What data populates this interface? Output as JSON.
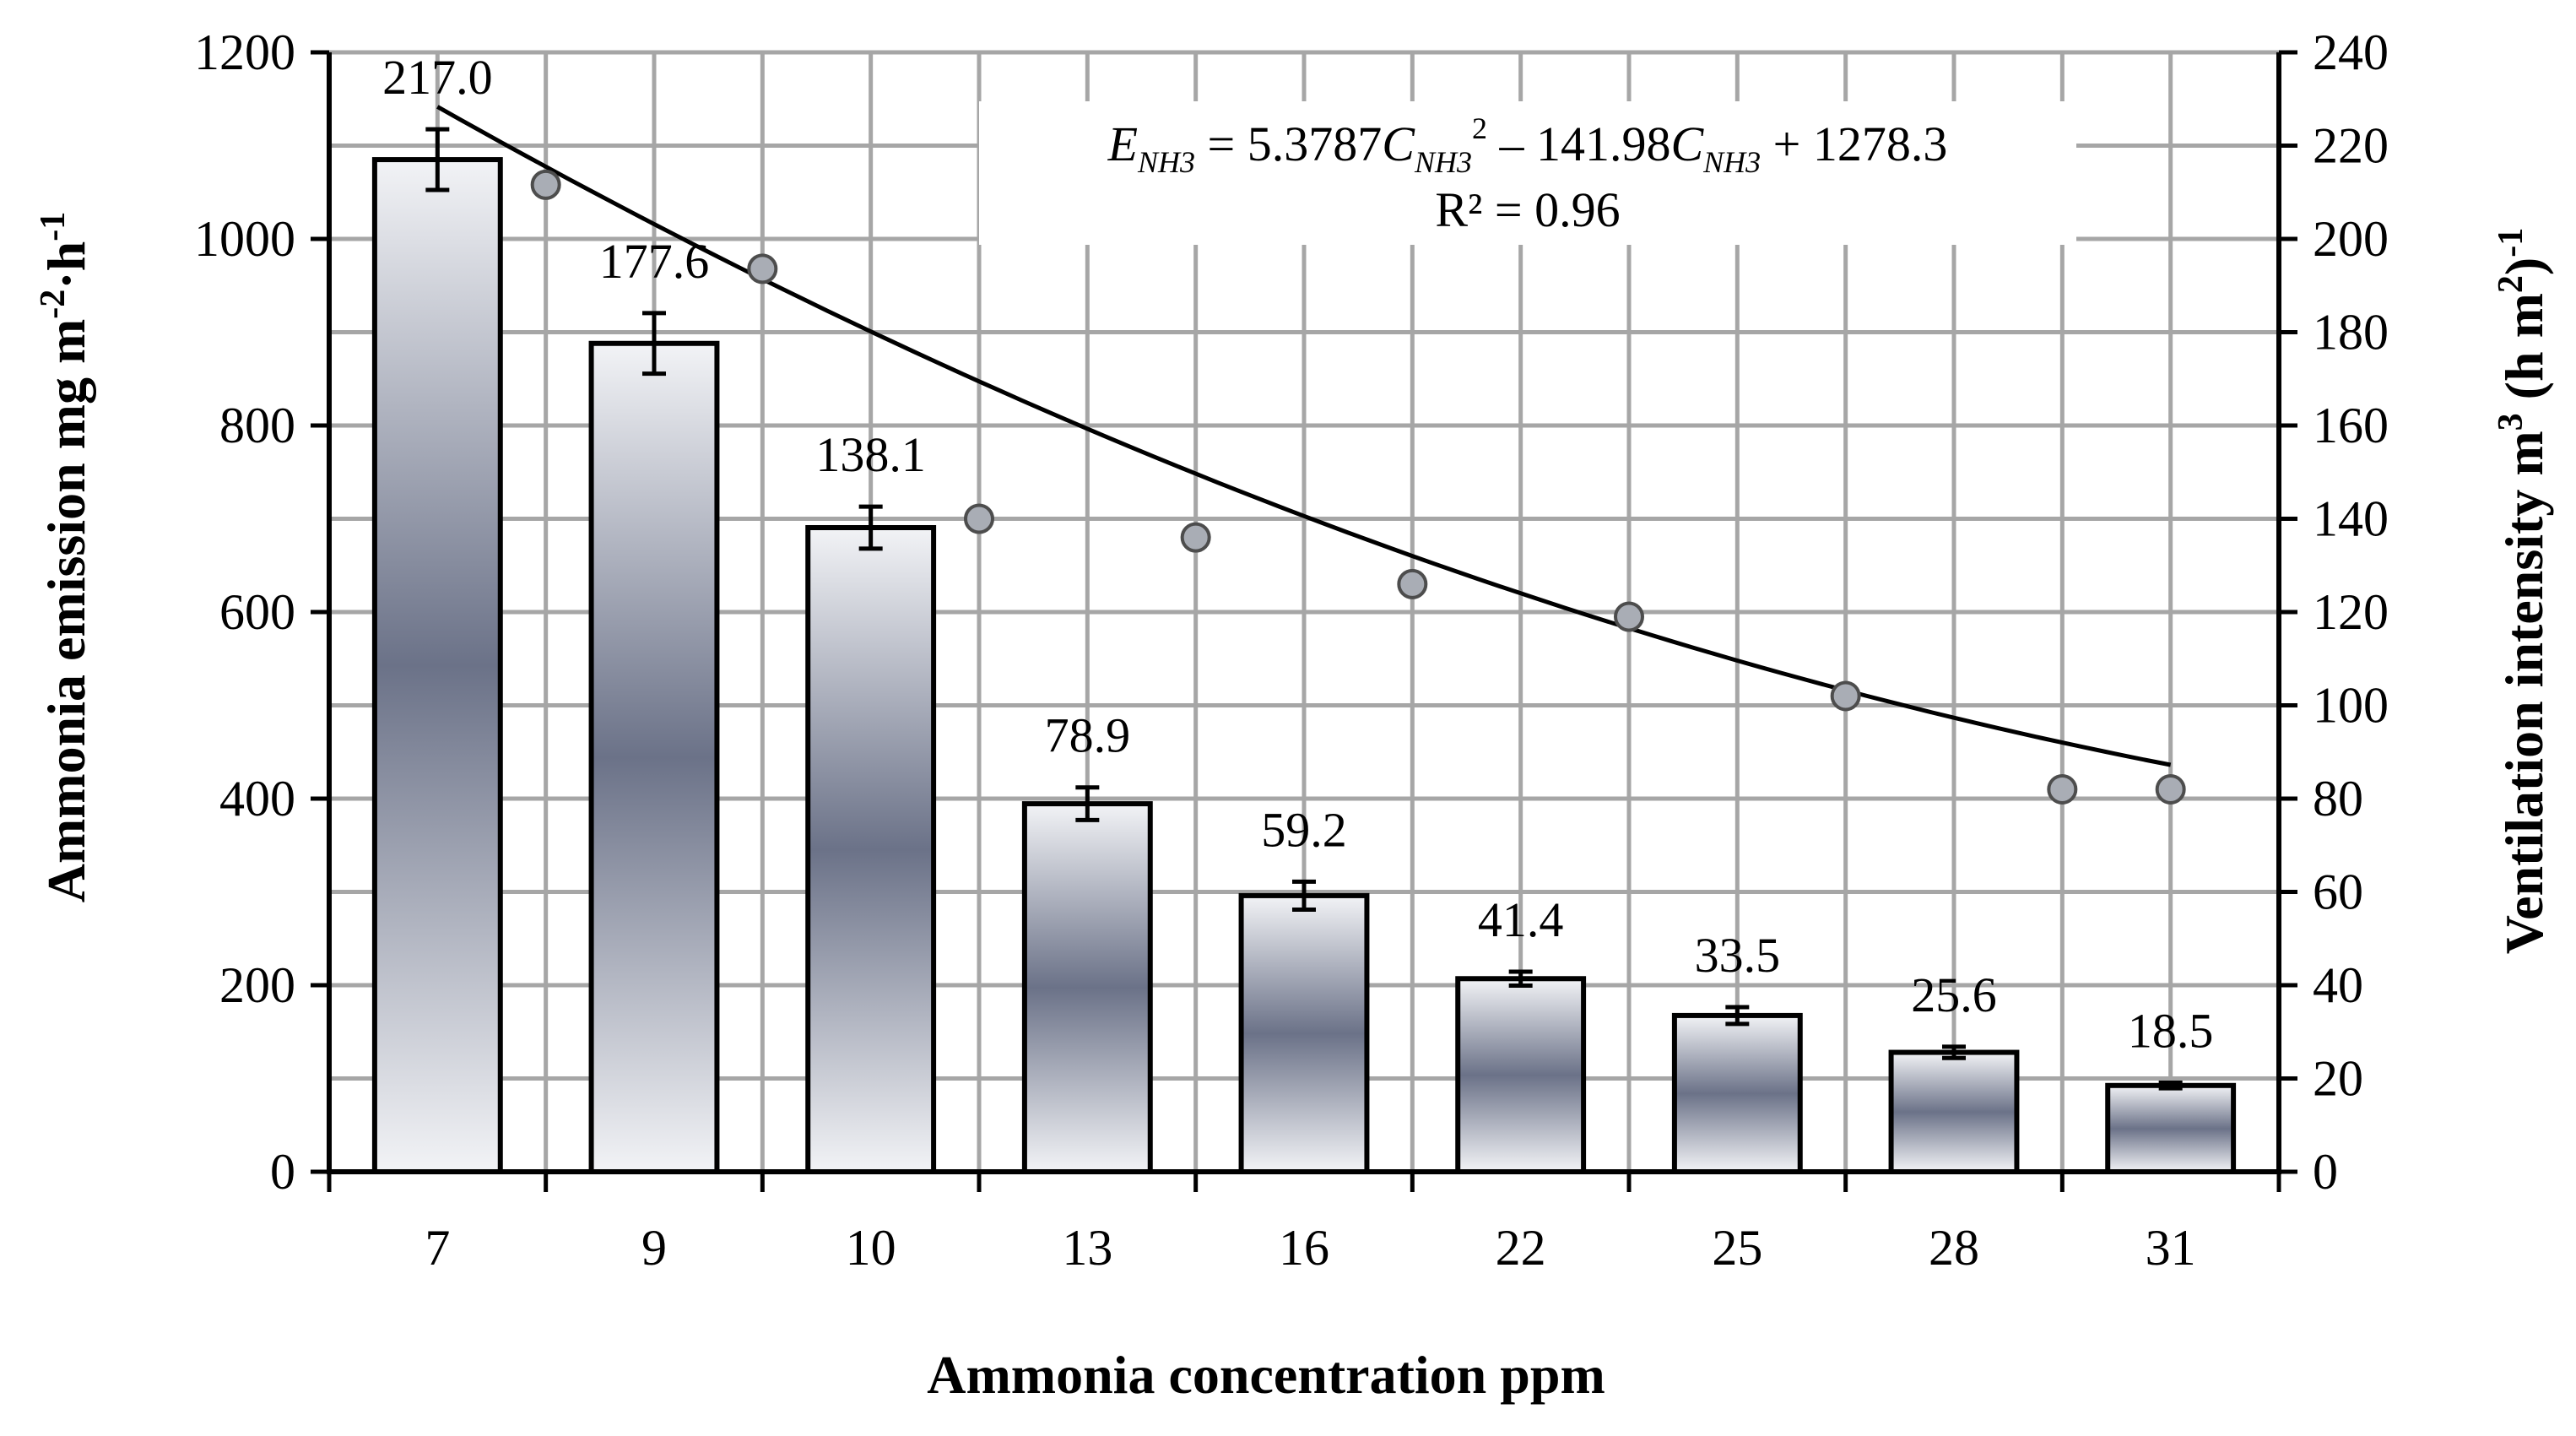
{
  "chart_data": {
    "type": "bar",
    "categories": [
      "7",
      "9",
      "10",
      "13",
      "16",
      "22",
      "25",
      "28",
      "31"
    ],
    "xlabel": "Ammonia concentration ppm",
    "ylabel": "Ammonia emission mg m",
    "ylabel_sup1": "-2",
    "ylabel_mid": "·h",
    "ylabel_sup2": "-1",
    "y2label": "Ventilation intensity m",
    "y2label_sup1": "3",
    "y2label_mid": " (h m",
    "y2label_sup2": "2",
    "y2label_end": ")",
    "y2label_sup3": "-1",
    "ylim": [
      0,
      1200
    ],
    "yticks": [
      "0",
      "200",
      "400",
      "600",
      "800",
      "1000",
      "1200"
    ],
    "y2lim": [
      0,
      240
    ],
    "y2ticks": [
      "0",
      "20",
      "40",
      "60",
      "80",
      "100",
      "120",
      "140",
      "160",
      "180",
      "200",
      "220",
      "240"
    ],
    "grid": true,
    "series": [
      {
        "name": "Ventilation intensity",
        "axis": "right",
        "kind": "bar",
        "values": [
          217.0,
          177.6,
          138.1,
          78.9,
          59.2,
          41.4,
          33.5,
          25.6,
          18.5
        ],
        "labels": [
          "217.0",
          "177.6",
          "138.1",
          "78.9",
          "59.2",
          "41.4",
          "33.5",
          "25.6",
          "18.5"
        ],
        "errors": [
          6.5,
          6.5,
          4.5,
          3.5,
          3.0,
          1.5,
          1.8,
          1.2,
          0.6
        ]
      },
      {
        "name": "Ammonia emission",
        "axis": "left",
        "kind": "scatter",
        "values": [
          1058,
          968,
          700,
          680,
          630,
          595,
          510,
          410,
          410
        ]
      }
    ],
    "trendline": {
      "kind": "polynomial",
      "coefficients": [
        5.3787,
        -141.98,
        1278.3
      ],
      "x_from_category_index": true
    },
    "equation": {
      "lhs": "E",
      "lhs_sub": "NH3",
      "part1": " = 5.3787",
      "var1": "C",
      "var1_sub": "NH3",
      "pow": "2",
      "part2": " – 141.98",
      "var2": "C",
      "var2_sub": "NH3",
      "part3": " + 1278.3",
      "r2": "R² = 0.96"
    }
  }
}
